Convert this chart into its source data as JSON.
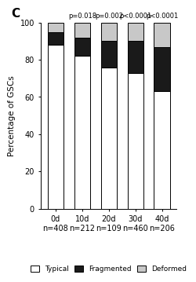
{
  "categories": [
    "0d\nn=408",
    "10d\nn=212",
    "20d\nn=109",
    "30d\nn=460",
    "40d\nn=206"
  ],
  "typical": [
    88,
    82,
    76,
    73,
    63
  ],
  "fragmented": [
    7,
    10,
    14,
    17,
    24
  ],
  "deformed": [
    5,
    8,
    10,
    10,
    13
  ],
  "p_values": [
    "",
    "p=0.018",
    "p=0.002",
    "p<0.0001",
    "p<0.0001"
  ],
  "typical_color": "#ffffff",
  "fragmented_color": "#1a1a1a",
  "deformed_color": "#c8c8c8",
  "ylabel": "Percentage of GSCs",
  "panel_label": "C",
  "ylim": [
    0,
    100
  ],
  "bar_width": 0.6
}
